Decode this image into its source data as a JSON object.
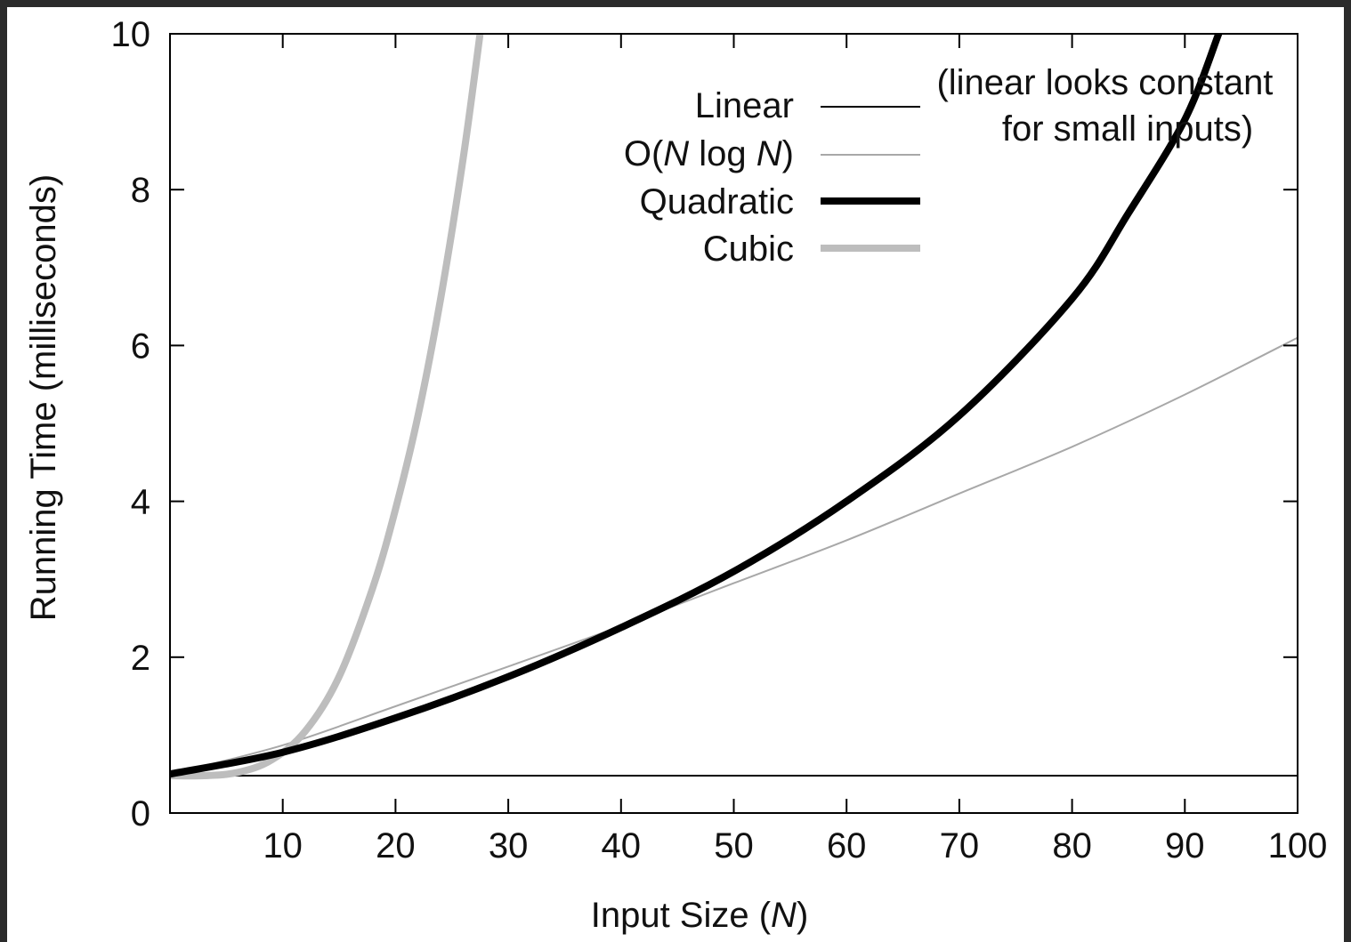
{
  "chart_data": {
    "type": "line",
    "title": "",
    "xlabel": {
      "prefix": "Input Size (",
      "var": "N",
      "suffix": ")"
    },
    "ylabel": "Running Time (milliseconds)",
    "xlim": [
      0,
      100
    ],
    "ylim": [
      0,
      10
    ],
    "x_ticks": [
      "10",
      "20",
      "30",
      "40",
      "50",
      "60",
      "70",
      "80",
      "90",
      "100"
    ],
    "y_ticks": [
      "0",
      "2",
      "4",
      "6",
      "8",
      "10"
    ],
    "grid": false,
    "legend_position": "top-center",
    "annotation": [
      "(linear looks constant",
      "for small inputs)"
    ],
    "series": [
      {
        "name": "Linear",
        "color": "#000000",
        "style": "thin",
        "x": [
          0,
          100
        ],
        "y": [
          0.48,
          0.48
        ]
      },
      {
        "name": "O(N log N)",
        "legend_parts": [
          "O(",
          "N",
          " log ",
          "N",
          ")"
        ],
        "color": "#a8a8a8",
        "style": "thin",
        "x": [
          0,
          10,
          20,
          30,
          40,
          50,
          60,
          70,
          80,
          90,
          100
        ],
        "y": [
          0.5,
          0.87,
          1.37,
          1.88,
          2.4,
          2.95,
          3.5,
          4.1,
          4.7,
          5.37,
          6.1
        ]
      },
      {
        "name": "Quadratic",
        "color": "#000000",
        "style": "thick",
        "x": [
          0,
          10,
          20,
          30,
          40,
          50,
          60,
          70,
          80,
          85,
          90,
          93
        ],
        "y": [
          0.5,
          0.78,
          1.22,
          1.75,
          2.38,
          3.1,
          4.0,
          5.1,
          6.6,
          7.7,
          8.9,
          10.0
        ]
      },
      {
        "name": "Cubic",
        "color": "#bdbdbd",
        "style": "thick",
        "x": [
          0,
          3,
          6,
          9,
          12,
          15,
          18,
          20,
          22,
          24,
          26,
          27.5
        ],
        "y": [
          0.48,
          0.48,
          0.52,
          0.68,
          1.05,
          1.75,
          2.9,
          3.9,
          5.1,
          6.6,
          8.4,
          10.0
        ]
      }
    ]
  }
}
